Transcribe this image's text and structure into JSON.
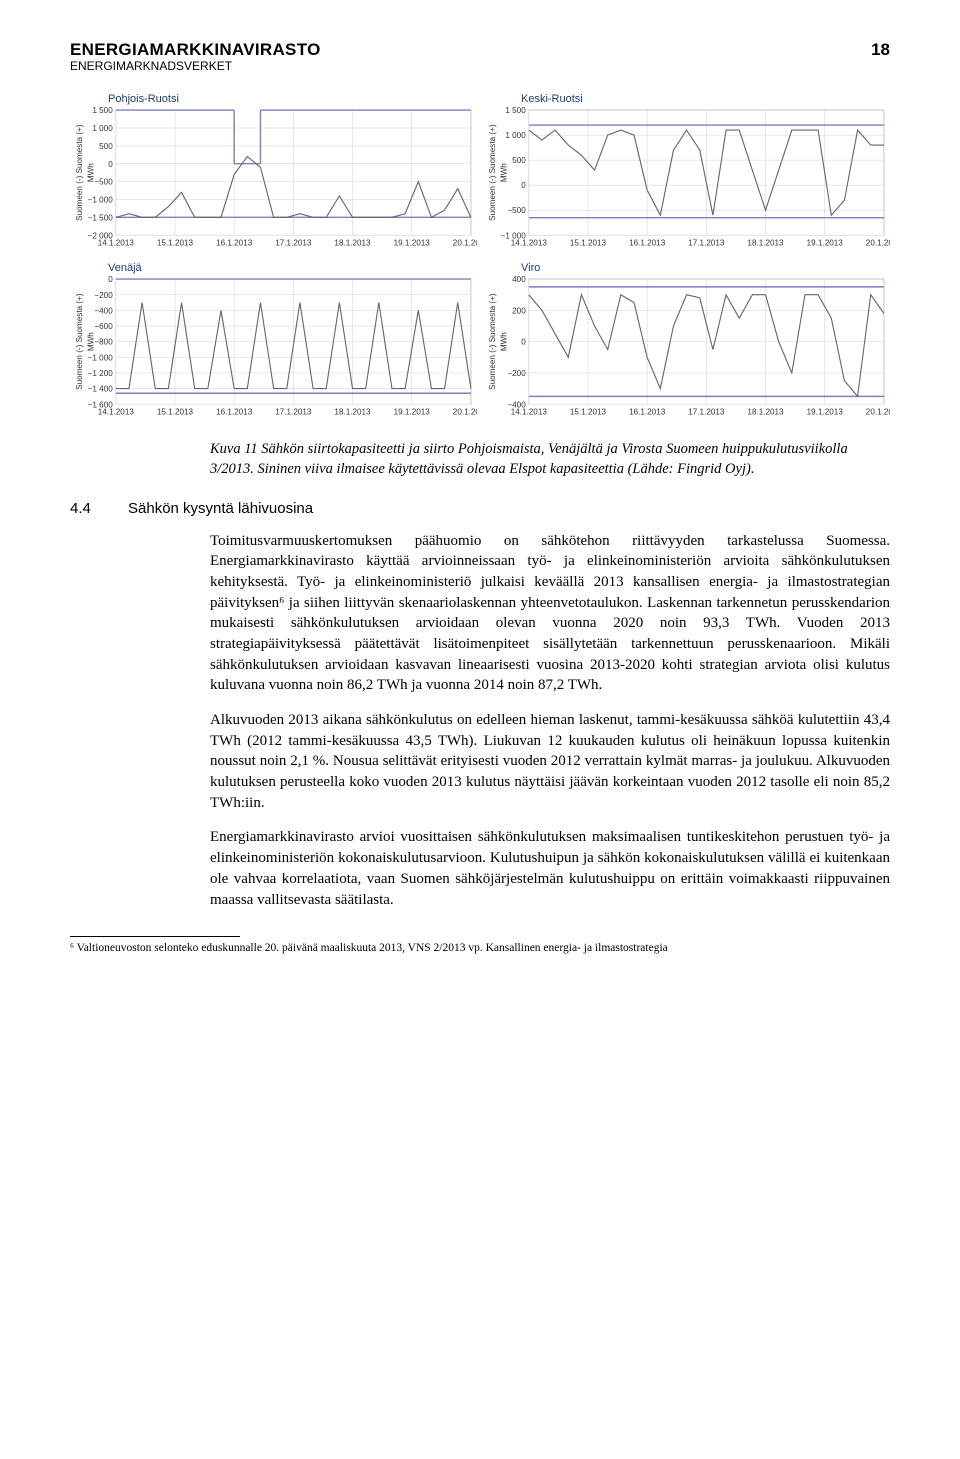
{
  "header": {
    "title": "ENERGIAMARKKINAVIRASTO",
    "subtitle": "ENERGIMARKNADSVERKET",
    "page": "18"
  },
  "charts": {
    "grid_color": "#d3d3d3",
    "cap_line_color": "#7b7fc8",
    "data_line_color": "#666666",
    "axis_color": "#555555",
    "bg_color": "#ffffff",
    "x_labels": [
      "14.1.2013",
      "15.1.2013",
      "16.1.2013",
      "17.1.2013",
      "18.1.2013",
      "19.1.2013",
      "20.1.2013"
    ],
    "yunit": "MWh",
    "rot_label_top": "Suomeen (-) Suomesta (+)",
    "rot_label_bottom": "Suomeen (-) Suomesta (+)",
    "panels": [
      {
        "title": "Pohjois-Ruotsi",
        "ymin": -2000,
        "ymax": 1500,
        "yticks": [
          -2000,
          -1500,
          -1000,
          -500,
          0,
          500,
          1000,
          1500
        ],
        "cap_hi": 1500,
        "cap_lo": -1500,
        "data": [
          -1500,
          -1400,
          -1500,
          -1500,
          -1200,
          -800,
          -1500,
          -1500,
          -1500,
          -300,
          200,
          -100,
          -1500,
          -1500,
          -1400,
          -1500,
          -1500,
          -900,
          -1500,
          -1500,
          -1500,
          -1500,
          -1400,
          -500,
          -1500,
          -1300,
          -700,
          -1500
        ],
        "cap_top_breaks": [
          [
            9,
            0
          ],
          [
            10,
            0
          ],
          [
            11,
            1500
          ]
        ]
      },
      {
        "title": "Keski-Ruotsi",
        "ymin": -1000,
        "ymax": 1500,
        "yticks": [
          -1000,
          -500,
          0,
          500,
          1000,
          1500
        ],
        "cap_hi": 1200,
        "cap_lo": -650,
        "data": [
          1100,
          900,
          1100,
          800,
          600,
          300,
          1000,
          1100,
          1000,
          -100,
          -600,
          700,
          1100,
          700,
          -600,
          1100,
          1100,
          300,
          -500,
          300,
          1100,
          1100,
          1100,
          -600,
          -300,
          1100,
          800,
          800
        ]
      },
      {
        "title": "Venäjä",
        "ymin": -1600,
        "ymax": 0,
        "yticks": [
          -1600,
          -1400,
          -1200,
          -1000,
          -800,
          -600,
          -400,
          -200,
          0
        ],
        "cap_hi": 0,
        "cap_lo": -1460,
        "data": [
          -1400,
          -1400,
          -300,
          -1400,
          -1400,
          -300,
          -1400,
          -1400,
          -400,
          -1400,
          -1400,
          -300,
          -1400,
          -1400,
          -300,
          -1400,
          -1400,
          -300,
          -1400,
          -1400,
          -300,
          -1400,
          -1400,
          -400,
          -1400,
          -1400,
          -300,
          -1400
        ]
      },
      {
        "title": "Viro",
        "ymin": -400,
        "ymax": 400,
        "yticks": [
          -400,
          -200,
          0,
          200,
          400
        ],
        "cap_hi": 350,
        "cap_lo": -350,
        "data": [
          300,
          200,
          50,
          -100,
          300,
          100,
          -50,
          300,
          250,
          -100,
          -300,
          100,
          300,
          280,
          -50,
          300,
          150,
          300,
          300,
          0,
          -200,
          300,
          300,
          150,
          -250,
          -350,
          300,
          180
        ]
      }
    ]
  },
  "caption": "Kuva 11 Sähkön siirtokapasiteetti ja siirto Pohjoismaista, Venäjältä ja Virosta Suomeen huippukulutusviikolla 3/2013. Sininen viiva ilmaisee käytettävissä olevaa Elspot kapasiteettia (Lähde: Fingrid Oyj).",
  "section": {
    "number": "4.4",
    "title": "Sähkön kysyntä lähivuosina"
  },
  "paragraphs": [
    "Toimitusvarmuuskertomuksen päähuomio on sähkötehon riittävyyden tarkastelussa Suomessa. Energiamarkkinavirasto käyttää arvioinneissaan työ- ja elinkeinoministeriön arvioita sähkönkulutuksen kehityksestä. Työ- ja elinkeinoministeriö julkaisi keväällä 2013 kansallisen energia- ja ilmastostrategian päivityksen⁶ ja siihen liittyvän skenaariolaskennan yhteenvetotaulukon. Laskennan tarkennetun perusskendarion mukaisesti sähkönkulutuksen arvioidaan olevan vuonna 2020 noin 93,3 TWh. Vuoden 2013 strategiapäivityksessä päätettävät lisätoimenpiteet sisällytetään tarkennettuun perusskenaarioon. Mikäli sähkönkulutuksen arvioidaan kasvavan lineaarisesti vuosina 2013-2020 kohti strategian arviota olisi kulutus kuluvana vuonna noin 86,2 TWh ja vuonna 2014 noin 87,2 TWh.",
    "Alkuvuoden 2013 aikana sähkönkulutus on edelleen hieman laskenut, tammi-kesäkuussa sähköä kulutettiin 43,4 TWh (2012 tammi-kesäkuussa 43,5 TWh). Liukuvan 12 kuukauden kulutus oli heinäkuun lopussa kuitenkin noussut noin 2,1 %. Nousua selittävät erityisesti vuoden 2012 verrattain kylmät marras- ja joulukuu. Alkuvuoden kulutuksen perusteella koko vuoden 2013 kulutus näyttäisi jäävän korkeintaan vuoden 2012 tasolle eli noin 85,2 TWh:iin.",
    "Energiamarkkinavirasto arvioi vuosittaisen sähkönkulutuksen maksimaalisen tuntikeskitehon perustuen työ- ja elinkeinoministeriön kokonaiskulutusarvioon. Kulutushuipun ja sähkön kokonaiskulutuksen välillä ei kuitenkaan ole vahvaa korrelaatiota, vaan Suomen sähköjärjestelmän kulutushuippu on erittäin voimakkaasti riippuvainen maassa vallitsevasta säätilasta."
  ],
  "footnote": "⁶ Valtioneuvoston selonteko eduskunnalle 20. päivänä maaliskuuta 2013, VNS 2/2013 vp. Kansallinen energia- ja ilmastostrategia"
}
